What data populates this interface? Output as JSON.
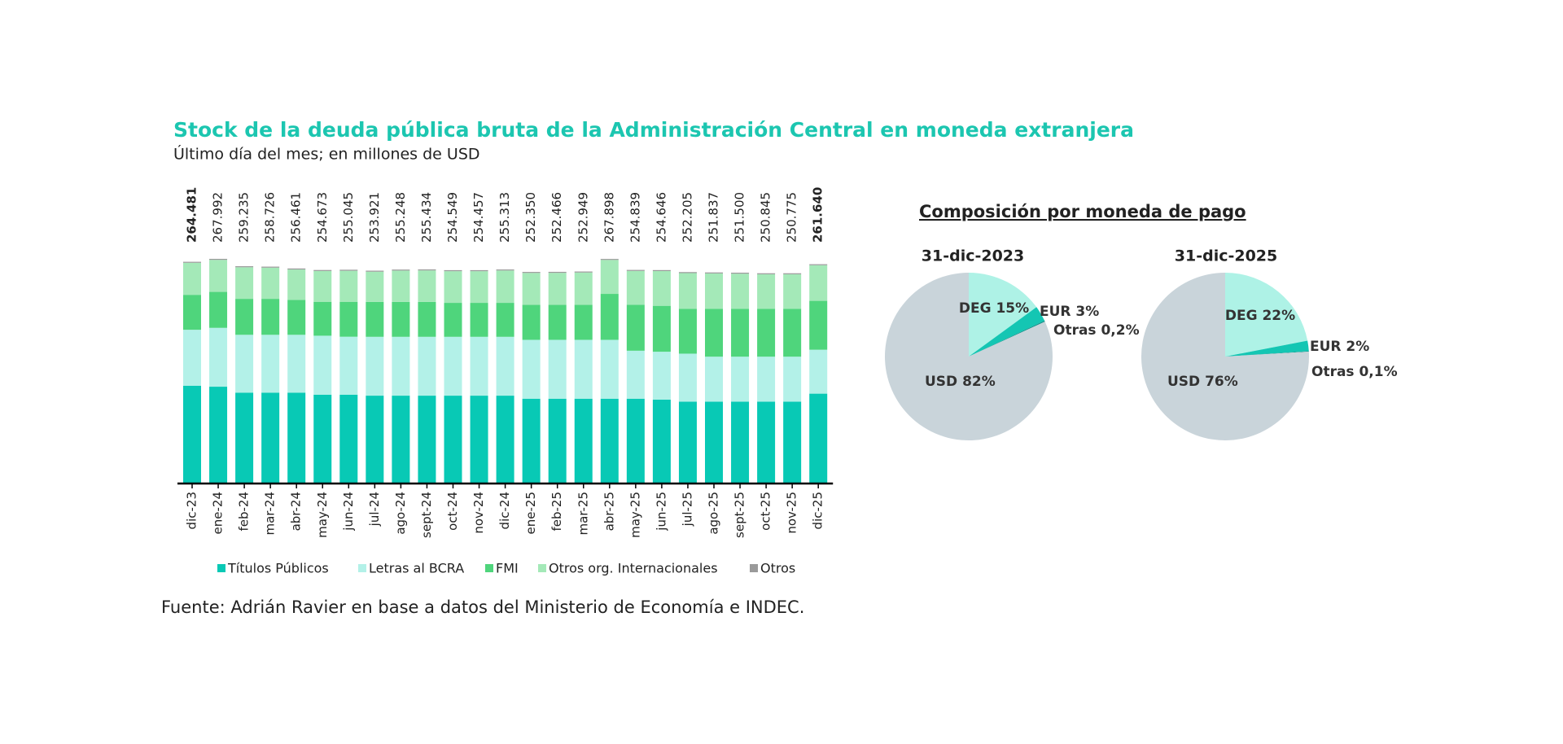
{
  "chart_data": [
    {
      "type": "bar",
      "stacked": true,
      "title": "Stock de la deuda pública bruta de la Administración Central en moneda extranjera",
      "subtitle": "Último día del mes; en millones de USD",
      "categories": [
        "dic-23",
        "ene-24",
        "feb-24",
        "mar-24",
        "abr-24",
        "may-24",
        "jun-24",
        "jul-24",
        "ago-24",
        "sept-24",
        "oct-24",
        "nov-24",
        "dic-24",
        "ene-25",
        "feb-25",
        "mar-25",
        "abr-25",
        "may-25",
        "jun-25",
        "jul-25",
        "ago-25",
        "sept-25",
        "oct-25",
        "nov-25",
        "dic-25"
      ],
      "series": [
        {
          "name": "Títulos Públicos",
          "color": "#08c9b5",
          "values": [
            116700,
            115500,
            108400,
            108400,
            108400,
            106000,
            106000,
            104800,
            104800,
            104800,
            104800,
            104800,
            104800,
            101200,
            101200,
            101200,
            101200,
            101200,
            100000,
            97700,
            97700,
            97700,
            97700,
            97700,
            107200
          ]
        },
        {
          "name": "Letras al BCRA",
          "color": "#b3f1e8",
          "values": [
            66700,
            70200,
            69000,
            69000,
            69000,
            70300,
            69100,
            70200,
            70200,
            70200,
            70200,
            70200,
            70200,
            70200,
            70200,
            70200,
            70200,
            57200,
            57200,
            57200,
            53600,
            53600,
            53600,
            53600,
            52400
          ]
        },
        {
          "name": "FMI",
          "color": "#4fd57c",
          "values": [
            41700,
            42900,
            42900,
            42900,
            41700,
            40500,
            41700,
            41700,
            41700,
            41700,
            40500,
            40500,
            40500,
            41700,
            41700,
            41700,
            54800,
            54800,
            54800,
            53600,
            57200,
            57200,
            57200,
            57200,
            58300
          ]
        },
        {
          "name": "Otros org. Internacionales",
          "color": "#a4e9b8",
          "values": [
            38200,
            38200,
            37700,
            37200,
            36200,
            36700,
            37000,
            36000,
            37300,
            37500,
            37800,
            37800,
            38600,
            38100,
            38200,
            38600,
            40500,
            40400,
            41400,
            42500,
            42100,
            41800,
            41100,
            41100,
            42500
          ]
        },
        {
          "name": "Otros",
          "color": "#9a9a9a",
          "values": [
            1200,
            1200,
            1200,
            1200,
            1200,
            1200,
            1200,
            1200,
            1200,
            1200,
            1200,
            1200,
            1200,
            1200,
            1200,
            1200,
            1200,
            1200,
            1200,
            1200,
            1200,
            1200,
            1200,
            1200,
            1200
          ]
        }
      ],
      "totals": {
        "values": [
          264481,
          267992,
          259235,
          258726,
          256461,
          254673,
          255045,
          253921,
          255248,
          255434,
          254549,
          254457,
          255313,
          252350,
          252466,
          252949,
          267898,
          254839,
          254646,
          252205,
          251837,
          251500,
          250845,
          250775,
          261640
        ],
        "value_labels": [
          "264.481",
          "267.992",
          "259.235",
          "258.726",
          "256.461",
          "254.673",
          "255.045",
          "253.921",
          "255.248",
          "255.434",
          "254.549",
          "254.457",
          "255.313",
          "252.350",
          "252.466",
          "252.949",
          "267.898",
          "254.839",
          "254.646",
          "252.205",
          "251.837",
          "251.500",
          "250.845",
          "250.775",
          "261.640"
        ]
      }
    },
    {
      "type": "pie",
      "title": "31-dic-2023",
      "values": [
        15,
        3,
        0.2,
        82
      ],
      "value_labels": [
        "DEG 15%",
        "EUR 3%",
        "Otras 0,2%",
        "USD 82%"
      ],
      "colors": [
        "#aef2e6",
        "#14c6b3",
        "#0e8f88",
        "#c9d4da"
      ]
    },
    {
      "type": "pie",
      "title": "31-dic-2025",
      "values": [
        22,
        2,
        0.1,
        76
      ],
      "value_labels": [
        "DEG 22%",
        "EUR 2%",
        "Otras 0,1%",
        "USD 76%"
      ],
      "colors": [
        "#aef2e6",
        "#14c6b3",
        "#0e8f88",
        "#c9d4da"
      ]
    }
  ],
  "pies_heading": "Composición por moneda de pago",
  "source": "Fuente: Adrián Ravier en base a datos del Ministerio de Economía e INDEC."
}
